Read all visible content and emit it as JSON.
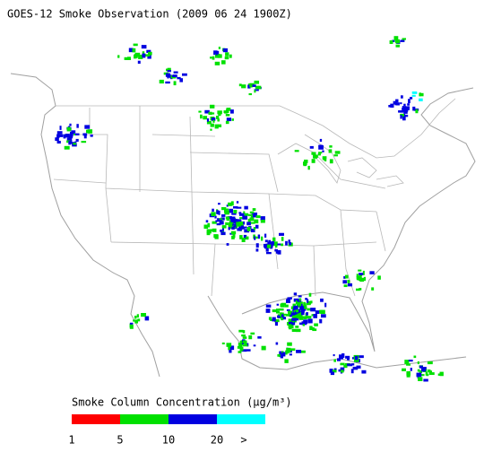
{
  "title": "GOES-12 Smoke Observation (2009 06 24  1900Z)",
  "legend": {
    "label": "Smoke Column Concentration (μg/m³)",
    "colors": [
      "#ff0000",
      "#00e000",
      "#0000e0",
      "#00ffff"
    ],
    "ticks": [
      1,
      5,
      10,
      20
    ],
    "overflow": ">"
  }
}
